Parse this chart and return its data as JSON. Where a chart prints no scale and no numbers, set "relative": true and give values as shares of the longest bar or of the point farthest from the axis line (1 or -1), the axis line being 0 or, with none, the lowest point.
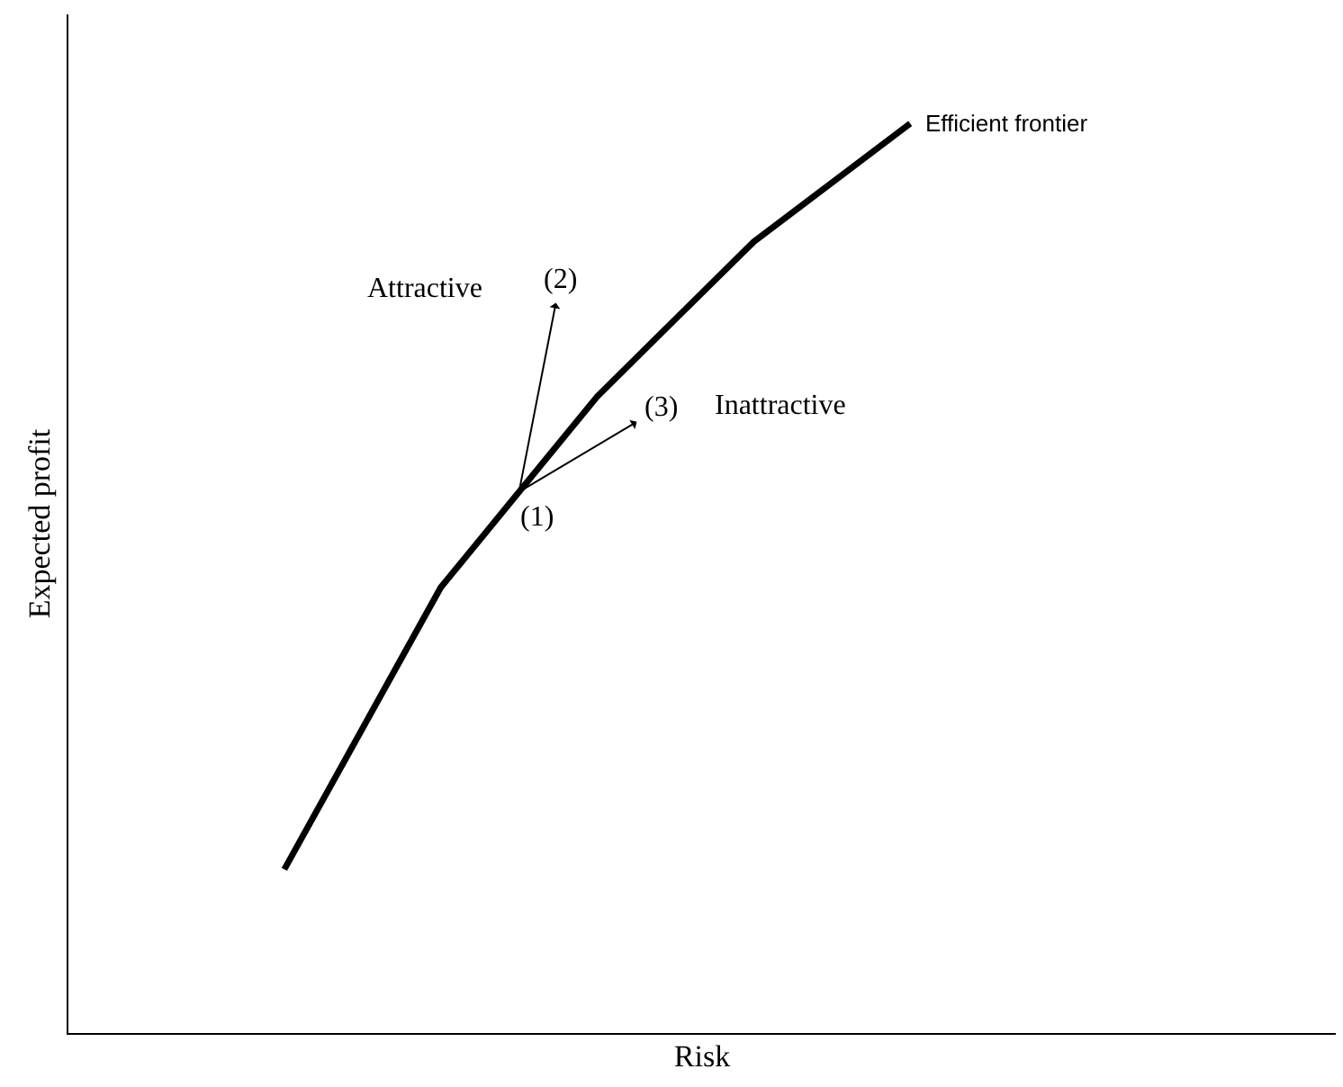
{
  "chart_data": {
    "type": "line",
    "relative": true,
    "xlabel": "Risk",
    "ylabel": "Expected profit",
    "categories": [
      null,
      null,
      null,
      null,
      null
    ],
    "series": [
      {
        "name": "Efficient frontier",
        "color": "#000000",
        "values": [
          0.18,
          0.49,
          0.7,
          0.87,
          1
        ]
      }
    ],
    "annotations": [
      "(1)",
      "(2)",
      "(3)",
      "Attractive",
      "Inattractive"
    ],
    "legend": false,
    "marker": "none",
    "line_style": "solid",
    "tick_labels": false
  }
}
